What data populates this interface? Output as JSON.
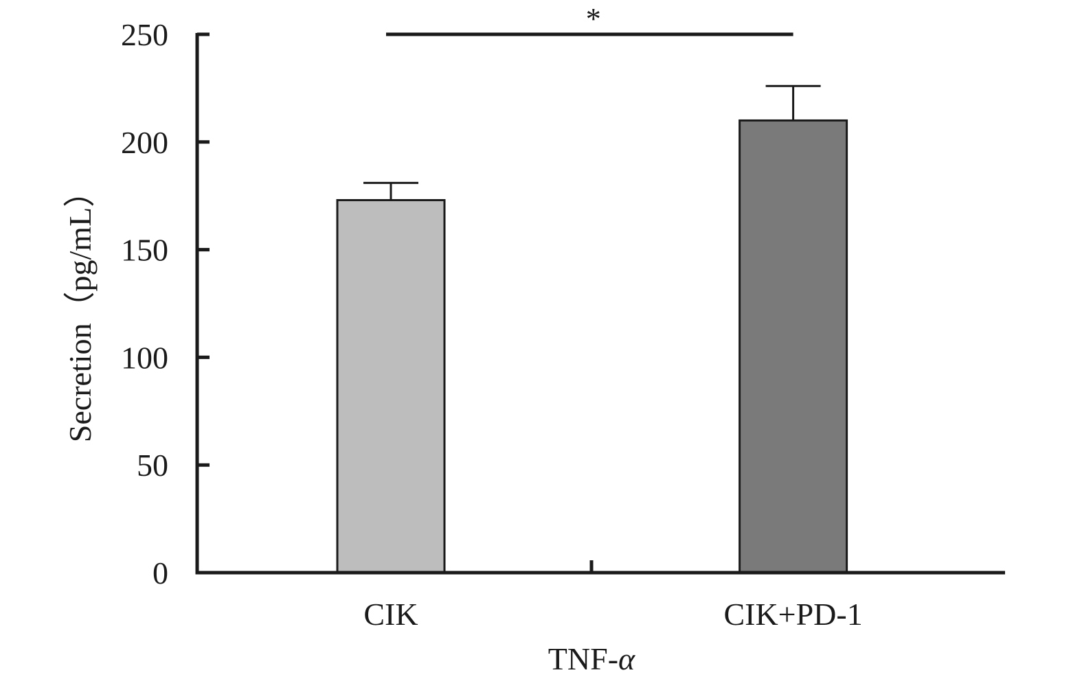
{
  "chart_data": {
    "type": "bar",
    "categories": [
      "CIK",
      "CIK+PD-1"
    ],
    "values": [
      173,
      210
    ],
    "error_upper": [
      181,
      226
    ],
    "colors": [
      "#bdbdbd",
      "#7b7a7a"
    ],
    "xlabel": "TNF-α",
    "xlabel_parts": {
      "prefix": "TNF-",
      "symbol": "α"
    },
    "ylabel": "Secretion（pg/mL）",
    "ylim": [
      0,
      250
    ],
    "yticks": [
      0,
      50,
      100,
      150,
      200,
      250
    ],
    "grid": false,
    "significance": {
      "from": "CIK",
      "to": "CIK+PD-1",
      "label": "*",
      "y": 250
    }
  }
}
